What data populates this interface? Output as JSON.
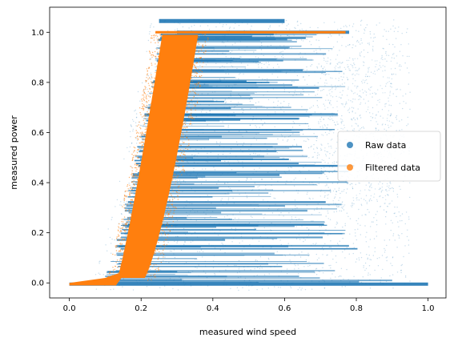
{
  "chart_data": {
    "type": "scatter",
    "title": "",
    "xlabel": "measured wind speed",
    "ylabel": "measured power",
    "xlim": [
      -0.055,
      1.05
    ],
    "ylim": [
      -0.06,
      1.1
    ],
    "xticks": [
      0.0,
      0.2,
      0.4,
      0.6,
      0.8,
      1.0
    ],
    "xtick_labels": [
      "0.0",
      "0.2",
      "0.4",
      "0.6",
      "0.8",
      "1.0"
    ],
    "yticks": [
      0.0,
      0.2,
      0.4,
      0.6,
      0.8,
      1.0
    ],
    "ytick_labels": [
      "0.0",
      "0.2",
      "0.4",
      "0.6",
      "0.8",
      "1.0"
    ],
    "grid": false,
    "legend_position": "right",
    "series": [
      {
        "name": "Raw data",
        "color": "#1f77b4",
        "description_points": [
          [
            0.0,
            -0.005
          ],
          [
            0.1,
            0.0
          ],
          [
            0.2,
            0.1
          ],
          [
            0.25,
            0.5
          ],
          [
            0.3,
            0.8
          ],
          [
            0.35,
            1.0
          ],
          [
            0.45,
            0.6
          ],
          [
            0.55,
            0.3
          ],
          [
            0.7,
            0.05
          ],
          [
            0.8,
            1.0
          ],
          [
            0.85,
            0.5
          ],
          [
            0.95,
            0.0
          ],
          [
            1.0,
            0.0
          ],
          [
            0.6,
            1.05
          ],
          [
            0.4,
            1.05
          ]
        ]
      },
      {
        "name": "Filtered data",
        "color": "#ff7f0e",
        "description_points": [
          [
            0.0,
            -0.005
          ],
          [
            0.08,
            0.0
          ],
          [
            0.15,
            0.12
          ],
          [
            0.2,
            0.35
          ],
          [
            0.25,
            0.65
          ],
          [
            0.28,
            0.85
          ],
          [
            0.3,
            1.0
          ],
          [
            0.4,
            1.0
          ],
          [
            0.6,
            1.0
          ],
          [
            0.77,
            1.0
          ]
        ]
      }
    ]
  }
}
